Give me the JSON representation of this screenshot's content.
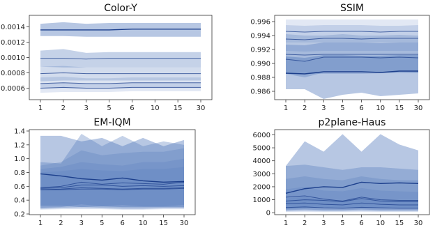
{
  "chart_data": [
    {
      "type": "line",
      "title": "Color-Y",
      "xlabel": "",
      "ylabel": "",
      "categories": [
        "1",
        "2",
        "3",
        "5",
        "6",
        "10",
        "15",
        "30"
      ],
      "ylim": [
        0.00045,
        0.00155
      ],
      "yticks": [
        0.0006,
        0.0008,
        0.001,
        0.0012,
        0.0014
      ],
      "ytick_labels": [
        "0.0006",
        "0.0008",
        "0.0010",
        "0.0012",
        "0.0014"
      ],
      "grid": false,
      "series": [
        {
          "values": [
            0.00136,
            0.00136,
            0.00136,
            0.00136,
            0.00137,
            0.00137,
            0.00137,
            0.00137
          ],
          "upper": [
            0.00144,
            0.00146,
            0.00144,
            0.00145,
            0.00145,
            0.00145,
            0.00145,
            0.00145
          ],
          "lower": [
            0.00128,
            0.00128,
            0.00127,
            0.00127,
            0.00127,
            0.00127,
            0.00127,
            0.00127
          ]
        },
        {
          "values": [
            0.00099,
            0.00099,
            0.00098,
            0.00099,
            0.00099,
            0.00099,
            0.00099,
            0.00099
          ],
          "upper": [
            0.00109,
            0.00111,
            0.00106,
            0.00107,
            0.00107,
            0.00107,
            0.00107,
            0.00107
          ],
          "lower": [
            0.00088,
            0.00087,
            0.00087,
            0.00087,
            0.00087,
            0.00087,
            0.00087,
            0.00087
          ]
        },
        {
          "values": [
            0.00079,
            0.0008,
            0.00079,
            0.00079,
            0.00079,
            0.00079,
            0.00079,
            0.00079
          ],
          "upper": [
            0.00088,
            0.00089,
            0.00087,
            0.00087,
            0.00087,
            0.00087,
            0.00087,
            0.00087
          ],
          "lower": [
            0.00069,
            0.0007,
            0.0007,
            0.0007,
            0.0007,
            0.0007,
            0.0007,
            0.0007
          ]
        },
        {
          "values": [
            0.00066,
            0.00067,
            0.00066,
            0.00066,
            0.00067,
            0.00067,
            0.00067,
            0.00067
          ],
          "upper": [
            0.00074,
            0.00075,
            0.00073,
            0.00073,
            0.00074,
            0.00074,
            0.00074,
            0.00074
          ],
          "lower": [
            0.00059,
            0.0006,
            0.00059,
            0.00059,
            0.0006,
            0.0006,
            0.0006,
            0.0006
          ]
        },
        {
          "values": [
            0.0006,
            0.00061,
            0.0006,
            0.0006,
            0.00061,
            0.00061,
            0.00061,
            0.00061
          ],
          "upper": [
            0.00066,
            0.00067,
            0.00066,
            0.00066,
            0.00067,
            0.00067,
            0.00067,
            0.00067
          ],
          "lower": [
            0.00054,
            0.00055,
            0.00055,
            0.00055,
            0.00056,
            0.00056,
            0.00056,
            0.00056
          ]
        }
      ]
    },
    {
      "type": "line",
      "title": "SSIM",
      "xlabel": "",
      "ylabel": "",
      "categories": [
        "1",
        "2",
        "3",
        "5",
        "6",
        "10",
        "15",
        "30"
      ],
      "ylim": [
        0.9848,
        0.9969
      ],
      "yticks": [
        0.986,
        0.988,
        0.99,
        0.992,
        0.994,
        0.996
      ],
      "ytick_labels": [
        "0.986",
        "0.988",
        "0.990",
        "0.992",
        "0.994",
        "0.996"
      ],
      "grid": false,
      "series": [
        {
          "values": [
            0.9886,
            0.9885,
            0.9888,
            0.9888,
            0.9888,
            0.9887,
            0.9889,
            0.9889
          ],
          "upper": [
            0.991,
            0.9908,
            0.9912,
            0.9912,
            0.9911,
            0.9911,
            0.9912,
            0.9912
          ],
          "lower": [
            0.9863,
            0.9863,
            0.9849,
            0.9855,
            0.9858,
            0.9853,
            0.9855,
            0.9857
          ]
        },
        {
          "values": [
            0.9906,
            0.9903,
            0.9909,
            0.9909,
            0.9909,
            0.9908,
            0.9909,
            0.9908
          ],
          "upper": [
            0.9927,
            0.9926,
            0.993,
            0.993,
            0.993,
            0.9929,
            0.993,
            0.993
          ],
          "lower": [
            0.9885,
            0.988,
            0.9887,
            0.9887,
            0.9887,
            0.9887,
            0.9888,
            0.9887
          ]
        },
        {
          "values": [
            0.9913,
            0.9912,
            0.9913,
            0.9913,
            0.9913,
            0.9913,
            0.9913,
            0.9913
          ],
          "upper": [
            0.9942,
            0.994,
            0.994,
            0.9942,
            0.994,
            0.994,
            0.9941,
            0.994
          ],
          "lower": [
            0.9885,
            0.9885,
            0.9885,
            0.9885,
            0.9885,
            0.9886,
            0.9886,
            0.9886
          ]
        },
        {
          "values": [
            0.9935,
            0.9934,
            0.9936,
            0.9936,
            0.9935,
            0.9936,
            0.9936,
            0.9936
          ],
          "upper": [
            0.9955,
            0.9954,
            0.9955,
            0.9955,
            0.9955,
            0.9954,
            0.9954,
            0.9955
          ],
          "lower": [
            0.9918,
            0.9917,
            0.9918,
            0.9918,
            0.9918,
            0.9918,
            0.9918,
            0.9918
          ]
        },
        {
          "values": [
            0.9946,
            0.9945,
            0.9946,
            0.9946,
            0.9946,
            0.9945,
            0.9946,
            0.9946
          ],
          "upper": [
            0.9963,
            0.9963,
            0.9963,
            0.9963,
            0.9963,
            0.9963,
            0.9963,
            0.9963
          ],
          "lower": [
            0.993,
            0.993,
            0.993,
            0.993,
            0.993,
            0.993,
            0.993,
            0.993
          ]
        }
      ]
    },
    {
      "type": "line",
      "title": "EM-IQM",
      "xlabel": "",
      "ylabel": "",
      "categories": [
        "1",
        "2",
        "3",
        "5",
        "6",
        "10",
        "15",
        "30"
      ],
      "ylim": [
        0.19,
        1.42
      ],
      "yticks": [
        0.2,
        0.4,
        0.6,
        0.8,
        1.0,
        1.2,
        1.4
      ],
      "ytick_labels": [
        "0.2",
        "0.4",
        "0.6",
        "0.8",
        "1.0",
        "1.2",
        "1.4"
      ],
      "grid": false,
      "series": [
        {
          "values": [
            0.78,
            0.75,
            0.71,
            0.69,
            0.72,
            0.68,
            0.66,
            0.67
          ],
          "upper": [
            1.33,
            1.33,
            1.25,
            1.3,
            1.18,
            1.3,
            1.18,
            1.27
          ],
          "lower": [
            0.32,
            0.32,
            0.3,
            0.31,
            0.3,
            0.3,
            0.3,
            0.3
          ]
        },
        {
          "values": [
            0.58,
            0.6,
            0.66,
            0.63,
            0.65,
            0.64,
            0.63,
            0.66
          ],
          "upper": [
            0.95,
            0.93,
            1.36,
            1.18,
            1.33,
            1.18,
            1.25,
            1.2
          ],
          "lower": [
            0.29,
            0.3,
            0.34,
            0.31,
            0.33,
            0.31,
            0.31,
            0.33
          ]
        },
        {
          "values": [
            0.57,
            0.58,
            0.62,
            0.62,
            0.6,
            0.61,
            0.6,
            0.61
          ],
          "upper": [
            0.9,
            0.95,
            1.12,
            1.05,
            1.08,
            1.1,
            1.1,
            1.15
          ],
          "lower": [
            0.28,
            0.29,
            0.3,
            0.29,
            0.28,
            0.28,
            0.29,
            0.29
          ]
        },
        {
          "values": [
            0.55,
            0.56,
            0.58,
            0.57,
            0.56,
            0.57,
            0.57,
            0.58
          ],
          "upper": [
            0.85,
            0.88,
            0.95,
            0.92,
            0.9,
            0.95,
            0.95,
            1.0
          ],
          "lower": [
            0.27,
            0.28,
            0.28,
            0.28,
            0.27,
            0.27,
            0.28,
            0.28
          ]
        },
        {
          "values": [
            0.55,
            0.55,
            0.56,
            0.56,
            0.55,
            0.56,
            0.56,
            0.57
          ],
          "upper": [
            0.8,
            0.82,
            0.85,
            0.83,
            0.82,
            0.85,
            0.85,
            0.88
          ],
          "lower": [
            0.26,
            0.27,
            0.27,
            0.27,
            0.26,
            0.26,
            0.27,
            0.27
          ]
        }
      ]
    },
    {
      "type": "line",
      "title": "p2plane-Haus",
      "xlabel": "",
      "ylabel": "",
      "categories": [
        "1",
        "2",
        "3",
        "5",
        "6",
        "10",
        "15",
        "30"
      ],
      "ylim": [
        -150,
        6400
      ],
      "yticks": [
        0,
        1000,
        2000,
        3000,
        4000,
        5000,
        6000
      ],
      "ytick_labels": [
        "0",
        "1000",
        "2000",
        "3000",
        "4000",
        "5000",
        "6000"
      ],
      "grid": false,
      "series": [
        {
          "values": [
            1500,
            1850,
            2000,
            1950,
            2350,
            2250,
            2300,
            2250
          ],
          "upper": [
            3600,
            5500,
            4700,
            6050,
            4700,
            6050,
            5250,
            4800
          ],
          "lower": [
            300,
            350,
            400,
            350,
            350,
            350,
            350,
            350
          ]
        },
        {
          "values": [
            1200,
            1300,
            1050,
            900,
            1200,
            1000,
            950,
            950
          ],
          "upper": [
            3600,
            3700,
            3500,
            3300,
            3500,
            3500,
            3400,
            3300
          ],
          "lower": [
            200,
            250,
            200,
            200,
            250,
            200,
            200,
            200
          ]
        },
        {
          "values": [
            900,
            1000,
            950,
            850,
            1100,
            900,
            850,
            850
          ],
          "upper": [
            2600,
            2800,
            2600,
            2500,
            2800,
            2600,
            2500,
            2500
          ],
          "lower": [
            150,
            200,
            150,
            150,
            200,
            150,
            150,
            150
          ]
        },
        {
          "values": [
            700,
            750,
            650,
            600,
            750,
            650,
            600,
            600
          ],
          "upper": [
            1800,
            2000,
            1700,
            1650,
            1900,
            1700,
            1650,
            1600
          ],
          "lower": [
            100,
            120,
            100,
            100,
            120,
            100,
            100,
            100
          ]
        },
        {
          "values": [
            400,
            450,
            380,
            350,
            420,
            380,
            350,
            350
          ],
          "upper": [
            1100,
            1200,
            1000,
            950,
            1100,
            1000,
            950,
            950
          ],
          "lower": [
            50,
            60,
            50,
            50,
            60,
            50,
            50,
            50
          ]
        }
      ]
    }
  ],
  "colors": {
    "band": "#4a72b8",
    "line": "#1c3f8c",
    "axis": "#333333"
  }
}
